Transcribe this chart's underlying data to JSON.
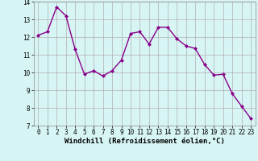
{
  "x": [
    0,
    1,
    2,
    3,
    4,
    5,
    6,
    7,
    8,
    9,
    10,
    11,
    12,
    13,
    14,
    15,
    16,
    17,
    18,
    19,
    20,
    21,
    22,
    23
  ],
  "y": [
    12.1,
    12.3,
    13.7,
    13.2,
    11.3,
    9.9,
    10.1,
    9.8,
    10.1,
    10.7,
    12.2,
    12.3,
    11.6,
    12.55,
    12.55,
    11.9,
    11.5,
    11.35,
    10.45,
    9.85,
    9.9,
    8.8,
    8.1,
    7.4
  ],
  "line_color": "#880088",
  "marker": "D",
  "marker_size": 2,
  "bg_color": "#d8f5f5",
  "grid_color": "#b0b0b0",
  "xlabel": "Windchill (Refroidissement éolien,°C)",
  "xlim": [
    -0.5,
    23.5
  ],
  "ylim": [
    7,
    14
  ],
  "yticks": [
    7,
    8,
    9,
    10,
    11,
    12,
    13,
    14
  ],
  "xticks": [
    0,
    1,
    2,
    3,
    4,
    5,
    6,
    7,
    8,
    9,
    10,
    11,
    12,
    13,
    14,
    15,
    16,
    17,
    18,
    19,
    20,
    21,
    22,
    23
  ],
  "tick_fontsize": 5.5,
  "xlabel_fontsize": 6.5,
  "linewidth": 1.0
}
